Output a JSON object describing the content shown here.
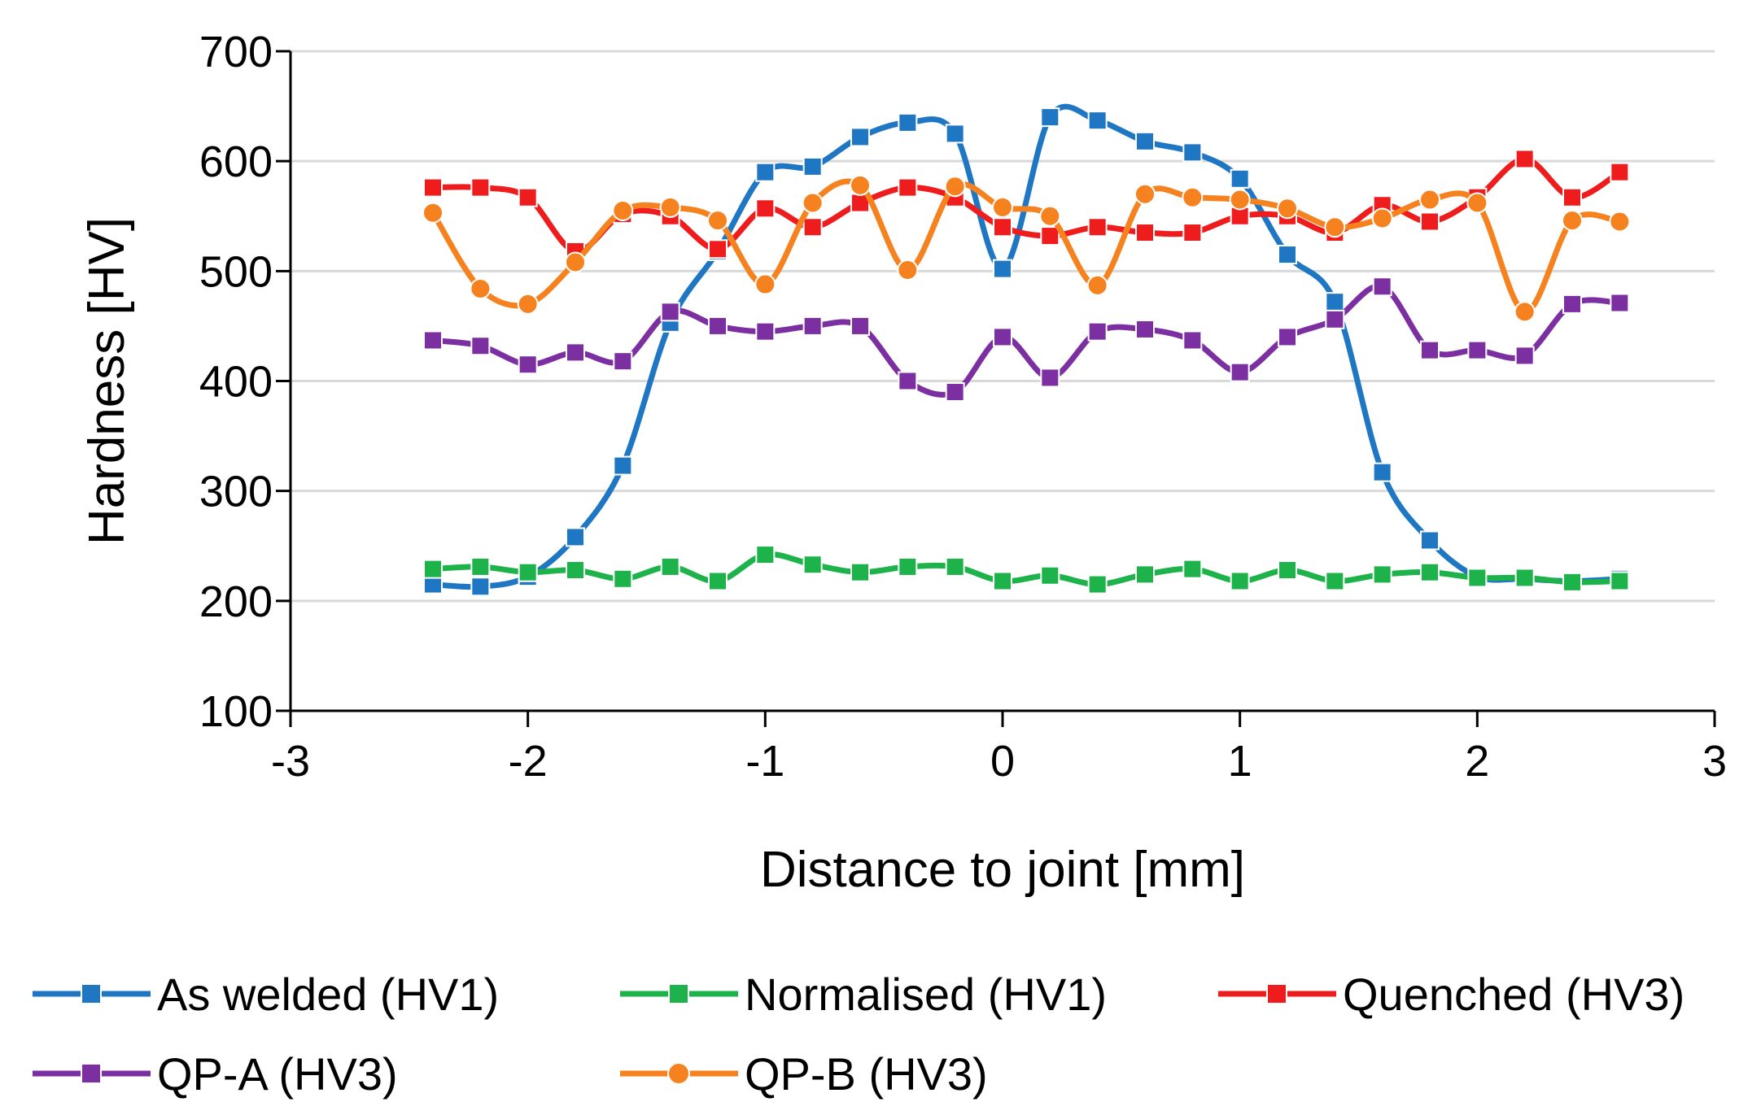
{
  "chart_data": {
    "type": "line",
    "title": "",
    "xlabel": "Distance to joint [mm]",
    "ylabel": "Hardness [HV]",
    "xlim": [
      -3,
      3
    ],
    "ylim": [
      100,
      700
    ],
    "xticks": [
      -3,
      -2,
      -1,
      0,
      1,
      2,
      3
    ],
    "yticks": [
      100,
      200,
      300,
      400,
      500,
      600,
      700
    ],
    "xtick_labels": [
      "-3",
      "-2",
      "-1",
      "0",
      "1",
      "2",
      "3"
    ],
    "ytick_labels": [
      "100",
      "200",
      "300",
      "400",
      "500",
      "600",
      "700"
    ],
    "grid": "horizontal",
    "legend_position": "bottom",
    "x": [
      -2.4,
      -2.2,
      -2.0,
      -1.8,
      -1.6,
      -1.4,
      -1.2,
      -1.0,
      -0.8,
      -0.6,
      -0.4,
      -0.2,
      0.0,
      0.2,
      0.4,
      0.6,
      0.8,
      1.0,
      1.2,
      1.4,
      1.6,
      1.8,
      2.0,
      2.2,
      2.4,
      2.6
    ],
    "series": [
      {
        "name": "As welded (HV1)",
        "color": "#1f77c4",
        "marker": "square",
        "values": [
          215,
          213,
          222,
          258,
          323,
          453,
          518,
          590,
          595,
          622,
          635,
          625,
          502,
          640,
          637,
          618,
          608,
          584,
          515,
          472,
          317,
          255,
          222,
          220,
          218,
          220
        ]
      },
      {
        "name": "Normalised (HV1)",
        "color": "#1db34a",
        "marker": "square",
        "values": [
          229,
          231,
          226,
          228,
          220,
          231,
          218,
          242,
          233,
          226,
          231,
          231,
          218,
          223,
          215,
          224,
          229,
          218,
          228,
          218,
          224,
          226,
          221,
          221,
          217,
          218
        ]
      },
      {
        "name": "Quenched (HV3)",
        "color": "#ee1c1c",
        "marker": "square",
        "values": [
          576,
          576,
          567,
          518,
          552,
          550,
          520,
          557,
          540,
          562,
          576,
          567,
          540,
          532,
          540,
          535,
          535,
          550,
          550,
          535,
          560,
          545,
          567,
          602,
          567,
          590
        ]
      },
      {
        "name": "QP-A (HV3)",
        "color": "#7b2fa0",
        "marker": "square",
        "values": [
          437,
          432,
          415,
          426,
          418,
          463,
          450,
          445,
          450,
          450,
          400,
          390,
          440,
          403,
          445,
          447,
          437,
          408,
          440,
          456,
          486,
          428,
          428,
          423,
          470,
          471
        ]
      },
      {
        "name": "QP-B (HV3)",
        "color": "#f5821f",
        "marker": "circle",
        "values": [
          553,
          484,
          470,
          508,
          555,
          558,
          546,
          488,
          562,
          578,
          501,
          577,
          558,
          550,
          487,
          570,
          567,
          565,
          557,
          540,
          548,
          565,
          562,
          463,
          546,
          545
        ]
      }
    ]
  }
}
